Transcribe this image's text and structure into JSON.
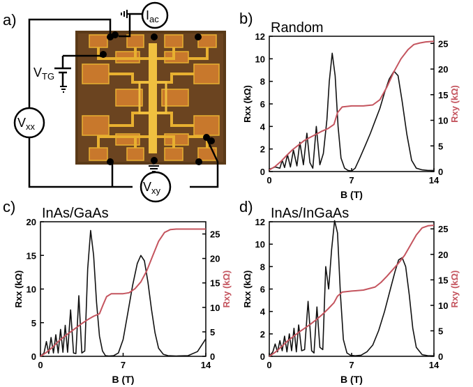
{
  "panel_a": {
    "letter": "a)",
    "labels": {
      "iac_main": "I",
      "iac_sub": "ac",
      "vtg_main": "V",
      "vtg_sub": "TG",
      "vxx_main": "V",
      "vxx_sub": "xx",
      "vxy_main": "V",
      "vxy_sub": "xy"
    },
    "colors": {
      "wire": "#000000",
      "chip_bg": "#5a3a18",
      "pad": "#c8782c",
      "metal": "#e8b030"
    }
  },
  "colors": {
    "rxx": "#111111",
    "rxy": "#c4545e",
    "axis": "#000000"
  },
  "chart_data": [
    {
      "type": "line",
      "letter": "b)",
      "title": "Random",
      "xlabel": "B (T)",
      "ylabel_left": "Rxx (kΩ)",
      "ylabel_right": "Rxy (kΩ)",
      "xlim": [
        0,
        14
      ],
      "ylim_left": [
        0,
        12
      ],
      "ylim_right": [
        0,
        26.4
      ],
      "xticks": [
        0,
        7,
        14
      ],
      "yticks_left": [
        0,
        2,
        4,
        6,
        8,
        10,
        12
      ],
      "yticks_right": [
        0,
        5,
        10,
        15,
        20,
        25
      ],
      "grid": false,
      "series": [
        {
          "axis": "left",
          "x": [
            0,
            0.5,
            0.9,
            1.1,
            1.3,
            1.55,
            1.8,
            2.05,
            2.35,
            2.6,
            2.9,
            3.2,
            3.45,
            3.7,
            4.0,
            4.3,
            4.6,
            4.9,
            5.1,
            5.35,
            5.6,
            5.85,
            6.1,
            6.4,
            6.7,
            7.0,
            7.3,
            7.7,
            8.2,
            8.6,
            9.0,
            9.4,
            9.8,
            10.2,
            10.6,
            10.95,
            11.3,
            11.7,
            12.1,
            12.5,
            13.0,
            13.5,
            14
          ],
          "y": [
            0.2,
            0.4,
            0.3,
            1.0,
            0.35,
            1.5,
            0.4,
            1.9,
            0.5,
            2.6,
            0.6,
            3.4,
            0.8,
            0.3,
            4.0,
            0.6,
            1.6,
            4.6,
            8.0,
            10.5,
            8.5,
            4.0,
            1.2,
            0.3,
            0.1,
            0.05,
            0.3,
            1.2,
            2.4,
            3.4,
            4.5,
            5.6,
            7.0,
            8.2,
            8.9,
            8.5,
            6.2,
            3.3,
            1.0,
            0.3,
            0.15,
            0.1,
            0.1
          ]
        },
        {
          "axis": "right",
          "x": [
            0,
            0.5,
            1.0,
            1.5,
            2.0,
            2.5,
            3.0,
            3.5,
            4.0,
            4.5,
            5.0,
            5.5,
            5.8,
            6.2,
            7.0,
            8.0,
            8.8,
            9.4,
            10.0,
            10.6,
            11.2,
            11.8,
            12.3,
            12.8,
            13.3,
            14
          ],
          "y": [
            0.3,
            1.0,
            2.0,
            3.2,
            4.3,
            5.2,
            6.1,
            6.7,
            7.3,
            7.9,
            8.4,
            9.2,
            11.5,
            12.6,
            12.8,
            12.8,
            13.0,
            14.0,
            16.5,
            19.5,
            22.0,
            23.8,
            24.8,
            25.1,
            25.3,
            25.4
          ]
        }
      ]
    },
    {
      "type": "line",
      "letter": "c)",
      "title": "InAs/GaAs",
      "xlabel": "B (T)",
      "ylabel_left": "Rxx (kΩ)",
      "ylabel_right": "Rxy (kΩ)",
      "xlim": [
        0,
        14
      ],
      "ylim_left": [
        0,
        20
      ],
      "ylim_right": [
        0,
        27.5
      ],
      "xticks": [
        0,
        7,
        14
      ],
      "yticks_left": [
        0,
        5,
        10,
        15,
        20
      ],
      "yticks_right": [
        0,
        5,
        10,
        15,
        20,
        25
      ],
      "grid": false,
      "series": [
        {
          "axis": "left",
          "x": [
            0,
            0.3,
            0.5,
            0.7,
            0.9,
            1.1,
            1.3,
            1.5,
            1.7,
            1.9,
            2.1,
            2.3,
            2.55,
            2.8,
            3.0,
            3.25,
            3.5,
            3.75,
            4.0,
            4.25,
            4.5,
            4.75,
            5.0,
            5.25,
            5.5,
            5.8,
            6.2,
            6.6,
            7.0,
            7.4,
            7.8,
            8.2,
            8.5,
            8.8,
            9.1,
            9.4,
            9.7,
            10.0,
            10.4,
            10.8,
            11.5,
            12.5,
            13.3,
            14
          ],
          "y": [
            0,
            0.5,
            2.2,
            0.4,
            2.8,
            0.5,
            3.2,
            0.5,
            4.0,
            0.6,
            4.6,
            0.6,
            6.9,
            0.5,
            0.4,
            9.0,
            0.5,
            0.8,
            13.0,
            18.7,
            15.0,
            8.0,
            3.0,
            0.8,
            0.1,
            0.05,
            0.1,
            0.5,
            2.5,
            6.5,
            10.5,
            13.8,
            15.0,
            14.2,
            11.0,
            7.0,
            3.5,
            1.2,
            0.3,
            0.1,
            0.05,
            0.1,
            0.7,
            2.6
          ]
        },
        {
          "axis": "right",
          "x": [
            0,
            0.5,
            1.0,
            1.5,
            2.0,
            2.5,
            3.0,
            3.5,
            4.0,
            4.5,
            5.0,
            5.3,
            5.6,
            6.0,
            7.0,
            7.5,
            8.0,
            8.5,
            9.0,
            9.5,
            10.0,
            10.5,
            11.0,
            11.5,
            12.5,
            14
          ],
          "y": [
            0,
            0.8,
            1.8,
            3.0,
            4.0,
            4.9,
            5.8,
            6.7,
            7.5,
            8.2,
            8.7,
            10.5,
            12.2,
            12.8,
            12.8,
            13.0,
            13.8,
            15.2,
            17.5,
            20.5,
            23.5,
            25.3,
            25.9,
            26.0,
            26.0,
            26.0
          ]
        }
      ]
    },
    {
      "type": "line",
      "letter": "d)",
      "title": "InAs/InGaAs",
      "xlabel": "B (T)",
      "ylabel_left": "Rxx (kΩ)",
      "ylabel_right": "Rxy (kΩ)",
      "xlim": [
        0,
        14
      ],
      "ylim_left": [
        0,
        12
      ],
      "ylim_right": [
        0,
        26.4
      ],
      "xticks": [
        0,
        7,
        14
      ],
      "yticks_left": [
        0,
        2,
        4,
        6,
        8,
        10,
        12
      ],
      "yticks_right": [
        0,
        5,
        10,
        15,
        20,
        25
      ],
      "grid": false,
      "series": [
        {
          "axis": "left",
          "x": [
            0,
            0.3,
            0.5,
            0.7,
            0.9,
            1.1,
            1.3,
            1.5,
            1.7,
            1.9,
            2.1,
            2.3,
            2.5,
            2.75,
            3.0,
            3.3,
            3.6,
            3.8,
            4.05,
            4.3,
            4.55,
            4.8,
            5.05,
            5.3,
            5.55,
            5.8,
            6.05,
            6.3,
            6.6,
            6.9,
            7.3,
            7.8,
            8.3,
            8.8,
            9.3,
            9.8,
            10.3,
            10.7,
            11.0,
            11.3,
            11.6,
            11.9,
            12.2,
            12.5,
            13.0,
            13.5,
            14
          ],
          "y": [
            0,
            0.4,
            1.1,
            0.4,
            1.4,
            0.5,
            1.8,
            0.4,
            2.0,
            0.5,
            2.5,
            0.4,
            2.8,
            0.5,
            0.6,
            4.9,
            0.5,
            0.3,
            4.4,
            0.8,
            0.6,
            8.0,
            6.0,
            9.5,
            12.1,
            11.0,
            5.5,
            1.5,
            0.3,
            0.1,
            0.05,
            0.1,
            0.4,
            1.0,
            2.3,
            4.0,
            6.0,
            7.6,
            8.6,
            8.8,
            8.0,
            5.5,
            2.5,
            0.8,
            0.15,
            0.05,
            0.05
          ]
        },
        {
          "axis": "right",
          "x": [
            0,
            0.5,
            1.0,
            1.5,
            2.0,
            2.5,
            3.0,
            3.5,
            4.0,
            4.5,
            5.0,
            5.5,
            5.8,
            6.2,
            7.0,
            8.0,
            9.0,
            9.5,
            10.0,
            10.5,
            11.0,
            11.5,
            12.0,
            12.5,
            13.0,
            13.5,
            14
          ],
          "y": [
            0,
            0.8,
            1.8,
            2.9,
            3.8,
            4.7,
            5.5,
            6.3,
            7.2,
            8.2,
            9.3,
            10.5,
            11.8,
            12.6,
            12.8,
            13.0,
            13.6,
            14.5,
            15.7,
            17.0,
            18.3,
            19.8,
            21.8,
            23.8,
            25.2,
            25.6,
            25.7
          ]
        }
      ]
    }
  ]
}
